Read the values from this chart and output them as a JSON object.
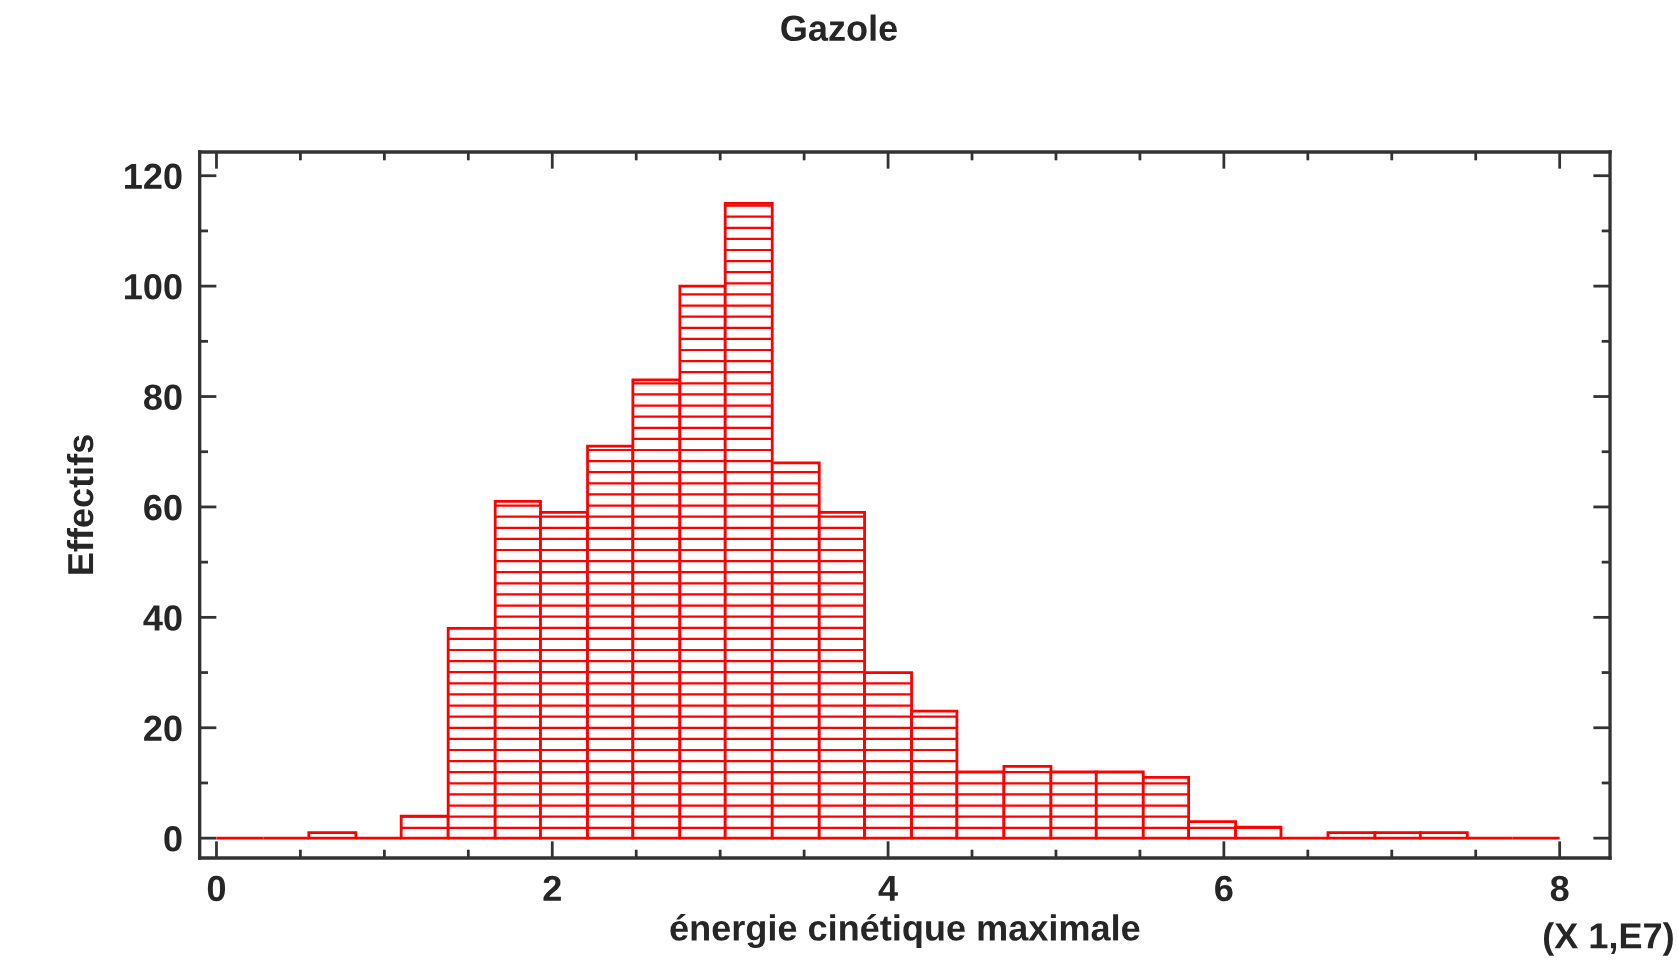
{
  "chart_data": {
    "type": "histogram",
    "title": "Gazole",
    "xlabel": "énergie cinétique maximale",
    "ylabel": "Effectifs",
    "annotations": [
      "(X 1,E7)"
    ],
    "bins": [
      0,
      0.28,
      0.55,
      0.83,
      1.1,
      1.38,
      1.66,
      1.93,
      2.21,
      2.48,
      2.76,
      3.03,
      3.31,
      3.59,
      3.86,
      4.14,
      4.41,
      4.69,
      4.97,
      5.24,
      5.52,
      5.79,
      6.07,
      6.34,
      6.62,
      6.9,
      7.17,
      7.45,
      7.72,
      8
    ],
    "values": [
      0,
      0,
      1,
      0,
      4,
      38,
      61,
      59,
      71,
      83,
      100,
      115,
      68,
      59,
      30,
      23,
      12,
      13,
      12,
      12,
      11,
      3,
      2,
      0,
      1,
      1,
      1,
      0,
      0
    ],
    "color": "#ff0000",
    "xlim": [
      -0.1,
      8.3
    ],
    "xticks": [
      0,
      2,
      4,
      6,
      8
    ],
    "ylim": [
      -3.6,
      124.3
    ],
    "yticks": [
      0,
      20,
      40,
      60,
      80,
      100,
      120
    ],
    "grid": false
  }
}
